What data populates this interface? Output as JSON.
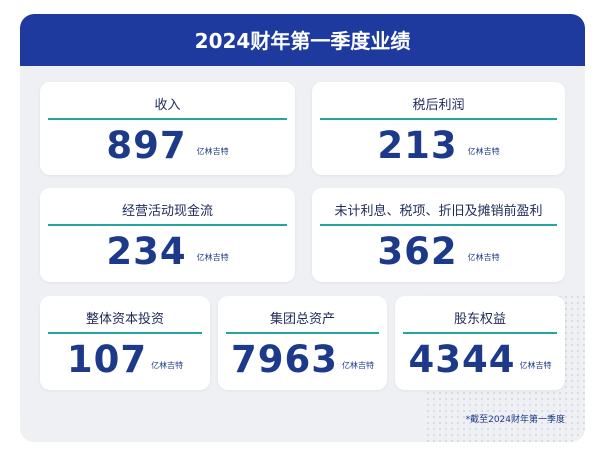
{
  "header": {
    "title": "2024财年第一季度业绩"
  },
  "cards": [
    {
      "label": "收入",
      "value": 897,
      "unit": "亿林吉特"
    },
    {
      "label": "税后利润",
      "value": 213,
      "unit": "亿林吉特"
    },
    {
      "label": "经营活动现金流",
      "value": 234,
      "unit": "亿林吉特"
    },
    {
      "label": "未计利息、税项、折旧及摊销前盈利",
      "value": 362,
      "unit": "亿林吉特"
    },
    {
      "label": "整体资本投资",
      "value": 107,
      "unit": "亿林吉特"
    },
    {
      "label": "集团总资产",
      "value": 7963,
      "unit": "亿林吉特"
    },
    {
      "label": "股东权益",
      "value": 4344,
      "unit": "亿林吉特"
    }
  ],
  "footnote": "*截至2024财年第一季度"
}
